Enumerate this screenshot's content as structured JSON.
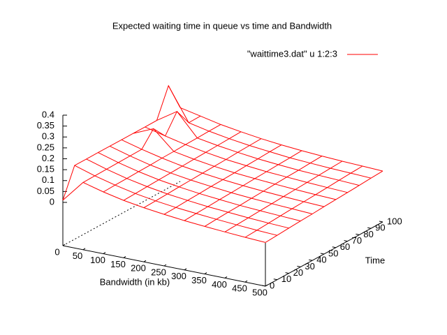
{
  "chart_data": {
    "type": "surface",
    "title": "Expected waiting time in queue vs time and Bandwidth",
    "xlabel": "Bandwidth (in kb)",
    "ylabel": "Time",
    "series": [
      {
        "name": "\"waittime3.dat\" u 1:2:3",
        "color": "#ff0000"
      }
    ],
    "x": [
      0,
      50,
      100,
      150,
      200,
      250,
      300,
      350,
      400,
      450,
      500
    ],
    "y": [
      0,
      10,
      20,
      30,
      40,
      50,
      60,
      70,
      80,
      90,
      100
    ],
    "z": [
      [
        0.01,
        0.11,
        0.085,
        0.065,
        0.05,
        0.038,
        0.028,
        0.02,
        0.013,
        0.007,
        0.002
      ],
      [
        0.14,
        0.111,
        0.087,
        0.067,
        0.052,
        0.04,
        0.031,
        0.023,
        0.016,
        0.01,
        0.005
      ],
      [
        0.14,
        0.112,
        0.088,
        0.069,
        0.054,
        0.043,
        0.033,
        0.026,
        0.019,
        0.013,
        0.009
      ],
      [
        0.14,
        0.113,
        0.09,
        0.071,
        0.057,
        0.045,
        0.036,
        0.028,
        0.022,
        0.017,
        0.012
      ],
      [
        0.14,
        0.114,
        0.091,
        0.073,
        0.059,
        0.048,
        0.038,
        0.031,
        0.025,
        0.02,
        0.015
      ],
      [
        0.14,
        0.115,
        0.093,
        0.075,
        0.061,
        0.05,
        0.041,
        0.034,
        0.028,
        0.023,
        0.019
      ],
      [
        0.14,
        0.18,
        0.094,
        0.077,
        0.063,
        0.052,
        0.044,
        0.037,
        0.031,
        0.026,
        0.022
      ],
      [
        0.14,
        0.117,
        0.096,
        0.079,
        0.065,
        0.055,
        0.046,
        0.04,
        0.034,
        0.029,
        0.025
      ],
      [
        0.14,
        0.2,
        0.097,
        0.081,
        0.068,
        0.057,
        0.049,
        0.042,
        0.037,
        0.033,
        0.028
      ],
      [
        0.27,
        0.119,
        0.099,
        0.083,
        0.07,
        0.06,
        0.051,
        0.045,
        0.04,
        0.036,
        0.032
      ],
      [
        0.14,
        0.12,
        0.1,
        0.085,
        0.072,
        0.062,
        0.054,
        0.048,
        0.043,
        0.039,
        0.035
      ]
    ],
    "xlim": [
      0,
      500
    ],
    "xticks": [
      0,
      50,
      100,
      150,
      200,
      250,
      300,
      350,
      400,
      450,
      500
    ],
    "ylim": [
      0,
      100
    ],
    "yticks": [
      0,
      10,
      20,
      30,
      40,
      50,
      60,
      70,
      80,
      90,
      100
    ],
    "zlim": [
      0,
      0.4
    ],
    "zticks": [
      0,
      0.05,
      0.1,
      0.15,
      0.2,
      0.25,
      0.3,
      0.35,
      0.4
    ]
  }
}
